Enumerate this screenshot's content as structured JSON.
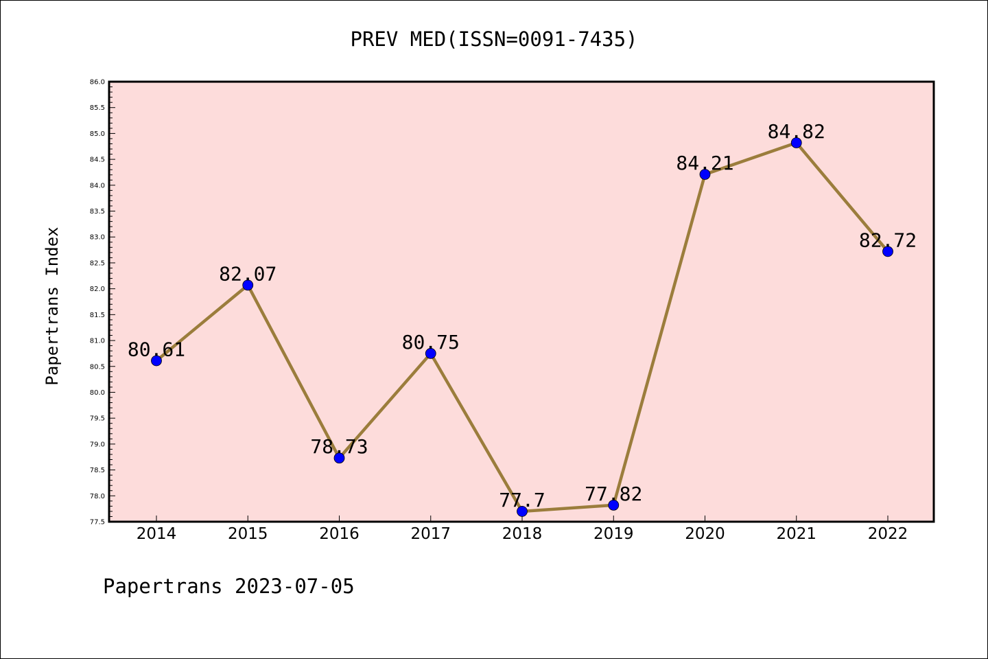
{
  "chart_data": {
    "type": "line",
    "title": "PREV MED(ISSN=0091-7435)",
    "xlabel": "",
    "ylabel": "Papertrans Index",
    "categories": [
      "2014",
      "2015",
      "2016",
      "2017",
      "2018",
      "2019",
      "2020",
      "2021",
      "2022"
    ],
    "series": [
      {
        "values": [
          80.61,
          82.07,
          78.73,
          80.75,
          77.7,
          77.82,
          84.21,
          84.82,
          82.72
        ],
        "data_labels": [
          "80.61",
          "82.07",
          "78.73",
          "80.75",
          "77.7",
          "77.82",
          "84.21",
          "84.82",
          "82.72"
        ]
      }
    ],
    "ylim": [
      77.5,
      86.0
    ],
    "yticks": [
      "77.5",
      "78.0",
      "78.5",
      "79.0",
      "79.5",
      "80.0",
      "80.5",
      "81.0",
      "81.5",
      "82.0",
      "82.5",
      "83.0",
      "83.5",
      "84.0",
      "84.5",
      "85.0",
      "85.5",
      "86.0"
    ],
    "grid": false,
    "colors": {
      "plot_background": "#fddcdb",
      "line": "#9b7d3c",
      "marker": "#0000ff"
    }
  },
  "footer": {
    "text": "Papertrans 2023-07-05"
  }
}
